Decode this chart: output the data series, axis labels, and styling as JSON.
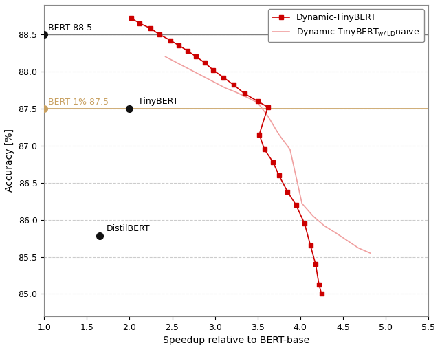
{
  "dynamic_tinybert_x": [
    2.02,
    2.12,
    2.25,
    2.35,
    2.48,
    2.58,
    2.68,
    2.78,
    2.88,
    2.98,
    3.1,
    3.22,
    3.35,
    3.5,
    3.62,
    3.52,
    3.58,
    3.68,
    3.75,
    3.85,
    3.95,
    4.05,
    4.12,
    4.18,
    4.22,
    4.25
  ],
  "dynamic_tinybert_y": [
    88.72,
    88.65,
    88.58,
    88.5,
    88.42,
    88.35,
    88.28,
    88.2,
    88.12,
    88.02,
    87.92,
    87.82,
    87.7,
    87.6,
    87.52,
    87.15,
    86.95,
    86.78,
    86.6,
    86.38,
    86.2,
    85.95,
    85.65,
    85.4,
    85.12,
    85.0
  ],
  "naive_x": [
    2.42,
    2.52,
    2.62,
    2.72,
    2.82,
    2.92,
    3.02,
    3.12,
    3.25,
    3.38,
    3.5,
    3.62,
    3.75,
    3.88,
    4.02,
    4.15,
    4.28,
    4.42,
    4.55,
    4.68,
    4.82
  ],
  "naive_y": [
    88.2,
    88.14,
    88.08,
    88.02,
    87.96,
    87.9,
    87.84,
    87.78,
    87.72,
    87.65,
    87.58,
    87.4,
    87.15,
    86.95,
    86.22,
    86.05,
    85.92,
    85.82,
    85.72,
    85.62,
    85.55
  ],
  "bert_x": 1.0,
  "bert_y": 88.5,
  "bert_1pct_x": 1.0,
  "bert_1pct_y": 87.5,
  "tinybert_x": 2.0,
  "tinybert_y": 87.5,
  "distilbert_x": 1.65,
  "distilbert_y": 85.78,
  "xlim": [
    1.0,
    5.5
  ],
  "ylim": [
    84.7,
    88.9
  ],
  "xlabel": "Speedup relative to BERT-base",
  "ylabel": "Accuracy [%]",
  "yticks": [
    85.0,
    85.5,
    86.0,
    86.5,
    87.0,
    87.5,
    88.0,
    88.5
  ],
  "xticks": [
    1.0,
    1.5,
    2.0,
    2.5,
    3.0,
    3.5,
    4.0,
    4.5,
    5.0,
    5.5
  ],
  "line_color": "#cc0000",
  "naive_color": "#f0a0a0",
  "bert_line_color": "#808080",
  "bert_1pct_color": "#c8a060",
  "point_color": "#111111",
  "legend_label_1": "Dynamic-TinyBERT",
  "bert_annotation": "BERT 88.5",
  "bert_1pct_annotation": "BERT 1% 87.5",
  "tinybert_annotation": "TinyBERT",
  "distilbert_annotation": "DistilBERT"
}
